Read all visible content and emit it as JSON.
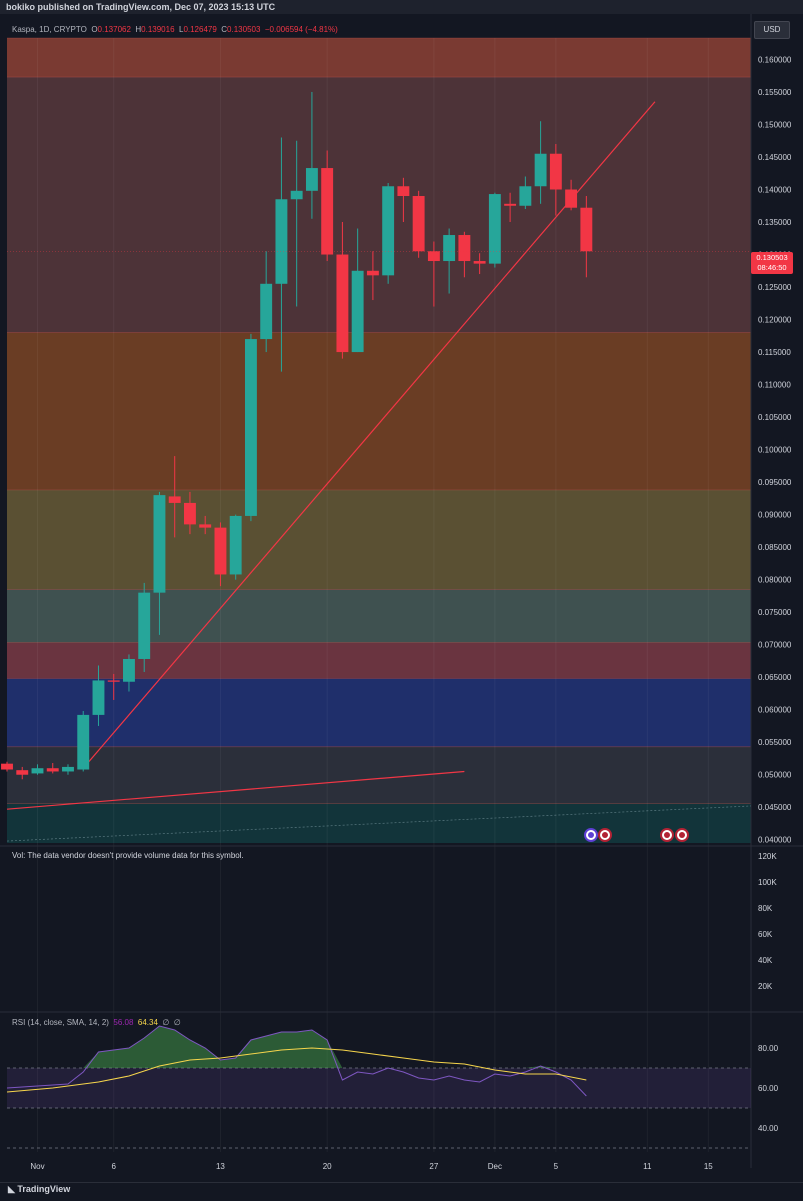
{
  "header": {
    "published": "bokiko published on TradingView.com, Dec 07, 2023 15:13 UTC"
  },
  "legend": {
    "symbol": "Kaspa, 1D, CRYPTO",
    "o_label": "O",
    "o": "0.137062",
    "h_label": "H",
    "h": "0.139016",
    "l_label": "L",
    "l": "0.126479",
    "c_label": "C",
    "c": "0.130503",
    "change": "−0.006594 (−4.81%)"
  },
  "currency": "USD",
  "price_tag": {
    "price": "0.130503",
    "countdown": "08:46:50"
  },
  "volume_label": "Vol: The data vendor doesn't provide volume data for this symbol.",
  "rsi_label": {
    "text": "RSI (14, close, SMA, 14, 2)",
    "rsi": "56.08",
    "sma": "64.34",
    "x1": "∅",
    "x2": "∅"
  },
  "footer_logo": "TradingView",
  "colors": {
    "up": "#26a69a",
    "down": "#f23645",
    "background": "#131722",
    "trendline": "#f23645"
  },
  "chart_data": [
    {
      "type": "candlestick",
      "y_ticks": [
        "0.160000",
        "0.155000",
        "0.150000",
        "0.145000",
        "0.140000",
        "0.135000",
        "0.130000",
        "0.125000",
        "0.120000",
        "0.115000",
        "0.110000",
        "0.105000",
        "0.100000",
        "0.095000",
        "0.090000",
        "0.085000",
        "0.080000",
        "0.075000",
        "0.070000",
        "0.065000",
        "0.060000",
        "0.055000",
        "0.050000",
        "0.045000",
        "0.040000"
      ],
      "ylim": [
        0.0395,
        0.1633
      ],
      "x_ticks": [
        {
          "label": "Nov",
          "day": 0
        },
        {
          "label": "6",
          "day": 5
        },
        {
          "label": "13",
          "day": 12
        },
        {
          "label": "20",
          "day": 19
        },
        {
          "label": "27",
          "day": 26
        },
        {
          "label": "Dec",
          "day": 30
        },
        {
          "label": "5",
          "day": 34
        },
        {
          "label": "11",
          "day": 40
        },
        {
          "label": "15",
          "day": 44
        }
      ],
      "xlim": [
        -2.0,
        46.8
      ],
      "ohlc": [
        {
          "d": -2,
          "o": 0.0517,
          "h": 0.052,
          "l": 0.0505,
          "c": 0.0508
        },
        {
          "d": -1,
          "o": 0.0507,
          "h": 0.0512,
          "l": 0.0493,
          "c": 0.05
        },
        {
          "d": 0,
          "o": 0.0502,
          "h": 0.0516,
          "l": 0.05,
          "c": 0.051
        },
        {
          "d": 1,
          "o": 0.051,
          "h": 0.0518,
          "l": 0.0502,
          "c": 0.0505
        },
        {
          "d": 2,
          "o": 0.0505,
          "h": 0.0516,
          "l": 0.05,
          "c": 0.0512
        },
        {
          "d": 3,
          "o": 0.0508,
          "h": 0.0598,
          "l": 0.0505,
          "c": 0.0592
        },
        {
          "d": 4,
          "o": 0.0592,
          "h": 0.0668,
          "l": 0.0575,
          "c": 0.0645
        },
        {
          "d": 5,
          "o": 0.0645,
          "h": 0.0655,
          "l": 0.0615,
          "c": 0.0643
        },
        {
          "d": 6,
          "o": 0.0643,
          "h": 0.0685,
          "l": 0.0628,
          "c": 0.0678
        },
        {
          "d": 7,
          "o": 0.0678,
          "h": 0.0795,
          "l": 0.0658,
          "c": 0.078
        },
        {
          "d": 8,
          "o": 0.078,
          "h": 0.0935,
          "l": 0.0715,
          "c": 0.093
        },
        {
          "d": 9,
          "o": 0.0928,
          "h": 0.099,
          "l": 0.0865,
          "c": 0.0918
        },
        {
          "d": 10,
          "o": 0.0918,
          "h": 0.0935,
          "l": 0.087,
          "c": 0.0885
        },
        {
          "d": 11,
          "o": 0.0885,
          "h": 0.0898,
          "l": 0.087,
          "c": 0.088
        },
        {
          "d": 12,
          "o": 0.088,
          "h": 0.0888,
          "l": 0.079,
          "c": 0.0808
        },
        {
          "d": 13,
          "o": 0.0808,
          "h": 0.09,
          "l": 0.08,
          "c": 0.0898
        },
        {
          "d": 14,
          "o": 0.0898,
          "h": 0.1178,
          "l": 0.089,
          "c": 0.117
        },
        {
          "d": 15,
          "o": 0.117,
          "h": 0.1305,
          "l": 0.115,
          "c": 0.1255
        },
        {
          "d": 16,
          "o": 0.1255,
          "h": 0.148,
          "l": 0.112,
          "c": 0.1385
        },
        {
          "d": 17,
          "o": 0.1385,
          "h": 0.1475,
          "l": 0.122,
          "c": 0.1398
        },
        {
          "d": 18,
          "o": 0.1398,
          "h": 0.155,
          "l": 0.1355,
          "c": 0.1433
        },
        {
          "d": 19,
          "o": 0.1433,
          "h": 0.146,
          "l": 0.129,
          "c": 0.13
        },
        {
          "d": 20,
          "o": 0.13,
          "h": 0.135,
          "l": 0.114,
          "c": 0.115
        },
        {
          "d": 21,
          "o": 0.115,
          "h": 0.134,
          "l": 0.115,
          "c": 0.1275
        },
        {
          "d": 22,
          "o": 0.1275,
          "h": 0.1305,
          "l": 0.123,
          "c": 0.1268
        },
        {
          "d": 23,
          "o": 0.1268,
          "h": 0.141,
          "l": 0.1255,
          "c": 0.1405
        },
        {
          "d": 24,
          "o": 0.1405,
          "h": 0.1418,
          "l": 0.135,
          "c": 0.139
        },
        {
          "d": 25,
          "o": 0.139,
          "h": 0.1398,
          "l": 0.1295,
          "c": 0.1305
        },
        {
          "d": 26,
          "o": 0.1305,
          "h": 0.132,
          "l": 0.122,
          "c": 0.129
        },
        {
          "d": 27,
          "o": 0.129,
          "h": 0.134,
          "l": 0.124,
          "c": 0.133
        },
        {
          "d": 28,
          "o": 0.133,
          "h": 0.1335,
          "l": 0.1265,
          "c": 0.129
        },
        {
          "d": 29,
          "o": 0.129,
          "h": 0.1302,
          "l": 0.127,
          "c": 0.1286
        },
        {
          "d": 30,
          "o": 0.1286,
          "h": 0.1395,
          "l": 0.128,
          "c": 0.1393
        },
        {
          "d": 31,
          "o": 0.1378,
          "h": 0.1395,
          "l": 0.135,
          "c": 0.1375
        },
        {
          "d": 32,
          "o": 0.1375,
          "h": 0.142,
          "l": 0.137,
          "c": 0.1405
        },
        {
          "d": 33,
          "o": 0.1405,
          "h": 0.1505,
          "l": 0.1378,
          "c": 0.1455
        },
        {
          "d": 34,
          "o": 0.1455,
          "h": 0.147,
          "l": 0.136,
          "c": 0.14
        },
        {
          "d": 35,
          "o": 0.14,
          "h": 0.1415,
          "l": 0.1368,
          "c": 0.1372
        },
        {
          "d": 36,
          "o": 0.1372,
          "h": 0.139,
          "l": 0.1265,
          "c": 0.1305
        }
      ],
      "zones": [
        {
          "from": 0.1573,
          "to": 0.1633,
          "color": "#7a3a32"
        },
        {
          "from": 0.118,
          "to": 0.1573,
          "color": "#4d3338"
        },
        {
          "from": 0.0938,
          "to": 0.118,
          "color": "#6a3d24"
        },
        {
          "from": 0.0785,
          "to": 0.0938,
          "color": "#5a5033"
        },
        {
          "from": 0.0703,
          "to": 0.0785,
          "color": "#3f5150"
        },
        {
          "from": 0.0648,
          "to": 0.0703,
          "color": "#6a3440"
        },
        {
          "from": 0.0543,
          "to": 0.0648,
          "color": "#1f2f6b"
        },
        {
          "from": 0.0456,
          "to": 0.0543,
          "color": "#2b2f3a"
        },
        {
          "from": 0.0395,
          "to": 0.0456,
          "color": "#12343a"
        }
      ],
      "trendlines": [
        {
          "d1": 3,
          "p1": 0.051,
          "d2": 40.5,
          "p2": 0.1535
        },
        {
          "d1": -2,
          "p1": 0.0447,
          "d2": 28,
          "p2": 0.0505
        }
      ]
    },
    {
      "type": "bar",
      "y_ticks": [
        "120K",
        "100K",
        "80K",
        "60K",
        "40K",
        "20K"
      ],
      "values": []
    },
    {
      "type": "line",
      "y_ticks": [
        "80.00",
        "60.00",
        "40.00"
      ],
      "ylim": [
        28,
        97
      ],
      "band": [
        50,
        70
      ],
      "rsi": [
        {
          "d": -2,
          "v": 60
        },
        {
          "d": 0,
          "v": 61
        },
        {
          "d": 2,
          "v": 62
        },
        {
          "d": 3,
          "v": 68
        },
        {
          "d": 4,
          "v": 78
        },
        {
          "d": 6,
          "v": 80
        },
        {
          "d": 7,
          "v": 85
        },
        {
          "d": 8,
          "v": 91
        },
        {
          "d": 9,
          "v": 89
        },
        {
          "d": 10,
          "v": 84
        },
        {
          "d": 11,
          "v": 80
        },
        {
          "d": 12,
          "v": 74
        },
        {
          "d": 13,
          "v": 75
        },
        {
          "d": 14,
          "v": 84
        },
        {
          "d": 15,
          "v": 86
        },
        {
          "d": 16,
          "v": 88
        },
        {
          "d": 17,
          "v": 88
        },
        {
          "d": 18,
          "v": 89
        },
        {
          "d": 19,
          "v": 84
        },
        {
          "d": 20,
          "v": 64
        },
        {
          "d": 21,
          "v": 68
        },
        {
          "d": 22,
          "v": 67
        },
        {
          "d": 23,
          "v": 70
        },
        {
          "d": 24,
          "v": 68
        },
        {
          "d": 25,
          "v": 65
        },
        {
          "d": 26,
          "v": 64
        },
        {
          "d": 27,
          "v": 66
        },
        {
          "d": 28,
          "v": 64
        },
        {
          "d": 29,
          "v": 63
        },
        {
          "d": 30,
          "v": 67
        },
        {
          "d": 31,
          "v": 66
        },
        {
          "d": 32,
          "v": 68
        },
        {
          "d": 33,
          "v": 71
        },
        {
          "d": 34,
          "v": 68
        },
        {
          "d": 35,
          "v": 64
        },
        {
          "d": 36,
          "v": 56
        }
      ],
      "sma": [
        {
          "d": -2,
          "v": 58
        },
        {
          "d": 1,
          "v": 60
        },
        {
          "d": 4,
          "v": 63
        },
        {
          "d": 6,
          "v": 66
        },
        {
          "d": 8,
          "v": 71
        },
        {
          "d": 10,
          "v": 74
        },
        {
          "d": 12,
          "v": 75
        },
        {
          "d": 14,
          "v": 77
        },
        {
          "d": 16,
          "v": 79
        },
        {
          "d": 18,
          "v": 80
        },
        {
          "d": 20,
          "v": 79
        },
        {
          "d": 22,
          "v": 77
        },
        {
          "d": 24,
          "v": 75
        },
        {
          "d": 26,
          "v": 73
        },
        {
          "d": 28,
          "v": 72
        },
        {
          "d": 30,
          "v": 69
        },
        {
          "d": 32,
          "v": 67
        },
        {
          "d": 34,
          "v": 67
        },
        {
          "d": 36,
          "v": 64
        }
      ]
    }
  ]
}
